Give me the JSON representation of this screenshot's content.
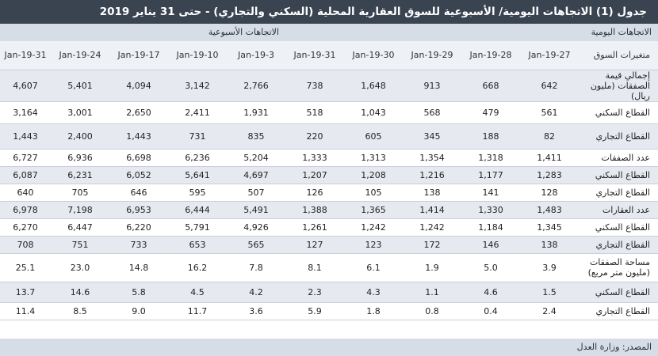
{
  "title": "جدول (1) الاتجاهات اليومية/ الأسبوعية للسوق العقارية المحلية (السكني والتجاري) - حتى 31 يناير 2019",
  "daily_label": "الاتجاهات اليومية",
  "weekly_label": "الاتجاهات الأسبوعية",
  "columns": [
    "متغيرات السوق",
    "27-Jan-19",
    "28-Jan-19",
    "29-Jan-19",
    "30-Jan-19",
    "31-Jan-19",
    "3-Jan-19",
    "10-Jan-19",
    "17-Jan-19",
    "24-Jan-19",
    "31-Jan-19"
  ],
  "rows": [
    {
      "label": "إجمالي قيمة الصفقات (مليون ريال)",
      "values": [
        "642",
        "668",
        "913",
        "1,648",
        "738",
        "2,766",
        "3,142",
        "4,094",
        "5,401",
        "4,607"
      ]
    },
    {
      "label": "القطاع السكني",
      "values": [
        "561",
        "479",
        "568",
        "1,043",
        "518",
        "1,931",
        "2,411",
        "2,650",
        "3,001",
        "3,164"
      ]
    },
    {
      "label": "القطاع التجاري",
      "values": [
        "82",
        "188",
        "345",
        "605",
        "220",
        "835",
        "731",
        "1,443",
        "2,400",
        "1,443"
      ]
    },
    {
      "label": "عدد الصفقات",
      "values": [
        "1,411",
        "1,318",
        "1,354",
        "1,313",
        "1,333",
        "5,204",
        "6,236",
        "6,698",
        "6,936",
        "6,727"
      ]
    },
    {
      "label": "القطاع السكني",
      "values": [
        "1,283",
        "1,177",
        "1,216",
        "1,208",
        "1,207",
        "4,697",
        "5,641",
        "6,052",
        "6,231",
        "6,087"
      ]
    },
    {
      "label": "القطاع التجاري",
      "values": [
        "128",
        "141",
        "138",
        "105",
        "126",
        "507",
        "595",
        "646",
        "705",
        "640"
      ]
    },
    {
      "label": "عدد العقارات",
      "values": [
        "1,483",
        "1,330",
        "1,414",
        "1,365",
        "1,388",
        "5,491",
        "6,444",
        "6,953",
        "7,198",
        "6,978"
      ]
    },
    {
      "label": "القطاع السكني",
      "values": [
        "1,345",
        "1,184",
        "1,242",
        "1,242",
        "1,261",
        "4,926",
        "5,791",
        "6,220",
        "6,447",
        "6,270"
      ]
    },
    {
      "label": "القطاع التجاري",
      "values": [
        "138",
        "146",
        "172",
        "123",
        "127",
        "565",
        "653",
        "733",
        "751",
        "708"
      ]
    },
    {
      "label": "مساحة الصفقات (مليون متر مربع)",
      "values": [
        "3.9",
        "5.0",
        "1.9",
        "6.1",
        "8.1",
        "7.8",
        "16.2",
        "14.8",
        "23.0",
        "25.1"
      ]
    },
    {
      "label": "القطاع السكني",
      "values": [
        "1.5",
        "4.6",
        "1.1",
        "4.3",
        "2.3",
        "4.2",
        "4.5",
        "5.8",
        "14.6",
        "13.7"
      ]
    },
    {
      "label": "القطاع التجاري",
      "values": [
        "2.4",
        "0.4",
        "0.8",
        "1.8",
        "5.9",
        "3.6",
        "11.7",
        "9.0",
        "8.5",
        "11.4"
      ]
    }
  ],
  "source": "المصدر: وزارة العدل"
}
